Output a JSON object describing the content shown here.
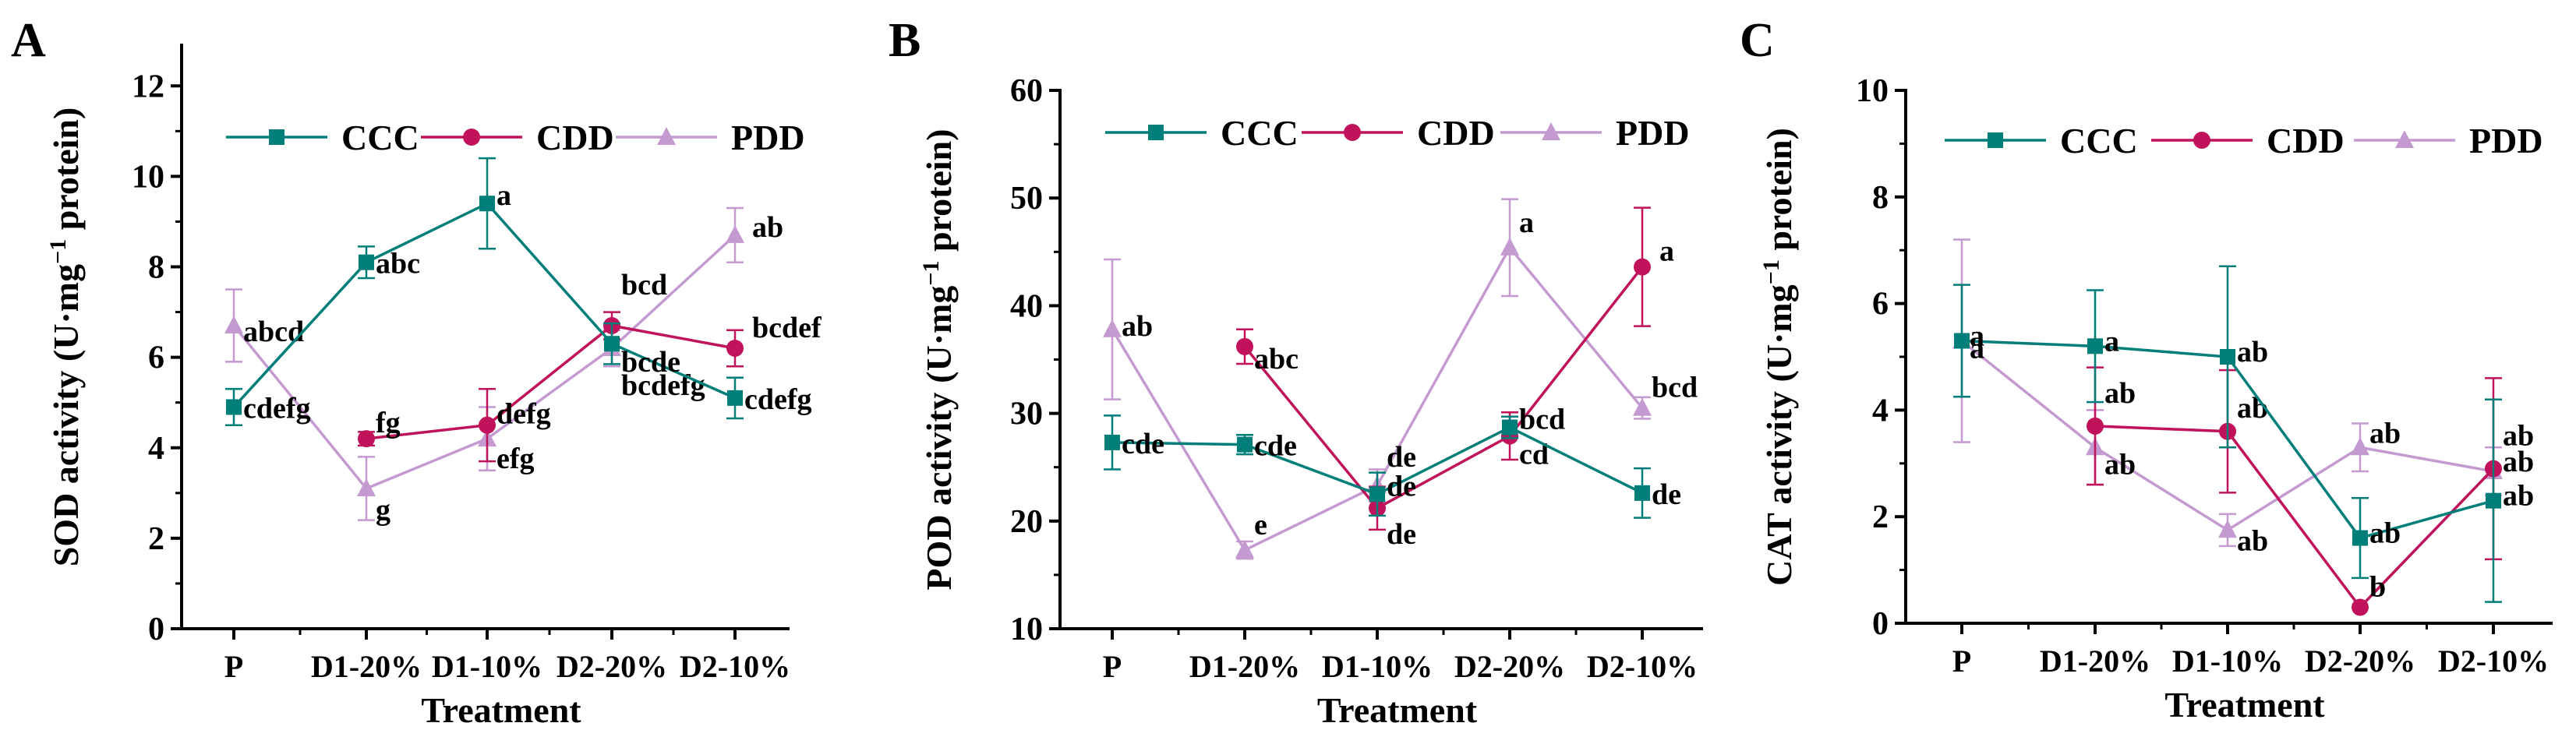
{
  "colors": {
    "CCC": "#007E79",
    "CDD": "#C0135B",
    "PDD": "#C49AD0"
  },
  "legend": [
    "CCC",
    "CDD",
    "PDD"
  ],
  "chart_data": [
    {
      "panel": "A",
      "type": "line",
      "xlabel": "Treatment",
      "ylabel": "SOD activity (U·mg⁻¹ protein)",
      "ylabel_parts": {
        "pre": "SOD activity (U·mg",
        "sup": "−1",
        "post": " protein)"
      },
      "ylim": [
        0,
        12.9
      ],
      "yticks": [
        0,
        2,
        4,
        6,
        8,
        10,
        12
      ],
      "categories": [
        "P",
        "D1-20%",
        "D1-10%",
        "D2-20%",
        "D2-10%"
      ],
      "series": [
        {
          "name": "CCC",
          "values": [
            4.9,
            8.1,
            9.4,
            6.3,
            5.1
          ],
          "errors": [
            0.4,
            0.35,
            1.0,
            0.45,
            0.45
          ],
          "labels": [
            "cdefg",
            "abc",
            "a",
            "bcde",
            "cdefg"
          ]
        },
        {
          "name": "CDD",
          "values": [
            null,
            4.2,
            4.5,
            6.7,
            6.2
          ],
          "errors": [
            null,
            0.15,
            0.8,
            0.3,
            0.4
          ],
          "labels": [
            null,
            "fg",
            "defg",
            "bcd",
            "bcdef"
          ]
        },
        {
          "name": "PDD",
          "values": [
            6.7,
            3.1,
            4.2,
            6.2,
            8.7
          ],
          "errors": [
            0.8,
            0.7,
            0.7,
            0.4,
            0.6
          ],
          "labels": [
            "abcd",
            "g",
            "efg",
            "bcdefg",
            "ab"
          ]
        }
      ]
    },
    {
      "panel": "B",
      "type": "line",
      "xlabel": "Treatment",
      "ylabel": "POD activity (U·mg⁻¹ protein)",
      "ylabel_parts": {
        "pre": "POD activity (U·mg",
        "sup": "−1",
        "post": " protein)"
      },
      "ylim": [
        10,
        60
      ],
      "yticks": [
        10,
        20,
        30,
        40,
        50,
        60
      ],
      "categories": [
        "P",
        "D1-20%",
        "D1-10%",
        "D2-20%",
        "D2-10%"
      ],
      "series": [
        {
          "name": "CCC",
          "values": [
            27.3,
            27.1,
            22.5,
            28.7,
            22.6
          ],
          "errors": [
            2.5,
            0.9,
            2.0,
            1.0,
            2.3
          ],
          "labels": [
            "cde",
            "cde",
            "de",
            "bcd",
            "de"
          ]
        },
        {
          "name": "CDD",
          "values": [
            null,
            36.2,
            21.2,
            27.9,
            43.6
          ],
          "errors": [
            null,
            1.6,
            2.0,
            2.2,
            5.5
          ],
          "labels": [
            null,
            "abc",
            "de",
            "cd",
            "a"
          ]
        },
        {
          "name": "PDD",
          "values": [
            37.8,
            17.3,
            23.3,
            45.4,
            30.5
          ],
          "errors": [
            6.5,
            0.8,
            1.5,
            4.5,
            1.0
          ],
          "labels": [
            "ab",
            "e",
            "de",
            "a",
            "bcd"
          ]
        }
      ]
    },
    {
      "panel": "C",
      "type": "line",
      "xlabel": "Treatment",
      "ylabel": "CAT activity (U·mg⁻¹ protein)",
      "ylabel_parts": {
        "pre": "CAT activity (U·mg",
        "sup": "−1",
        "post": " protein)"
      },
      "ylim": [
        0,
        10
      ],
      "yticks": [
        0,
        2,
        4,
        6,
        8,
        10
      ],
      "categories": [
        "P",
        "D1-20%",
        "D1-10%",
        "D2-20%",
        "D2-10%"
      ],
      "series": [
        {
          "name": "CCC",
          "values": [
            5.3,
            5.2,
            5.0,
            1.6,
            2.3
          ],
          "errors": [
            1.05,
            1.05,
            1.7,
            0.75,
            1.9
          ],
          "labels": [
            "a",
            "a",
            "ab",
            "ab",
            "ab"
          ]
        },
        {
          "name": "CDD",
          "values": [
            null,
            3.7,
            3.6,
            0.3,
            2.9
          ],
          "errors": [
            null,
            1.1,
            1.15,
            0.0,
            1.7
          ],
          "labels": [
            null,
            "ab",
            "ab",
            "b",
            "ab"
          ]
        },
        {
          "name": "PDD",
          "values": [
            5.3,
            3.3,
            1.75,
            3.3,
            2.85
          ],
          "errors": [
            1.9,
            0.7,
            0.3,
            0.45,
            0.45
          ],
          "labels": [
            "a",
            "ab",
            "ab",
            "ab",
            "ab"
          ]
        }
      ]
    }
  ]
}
